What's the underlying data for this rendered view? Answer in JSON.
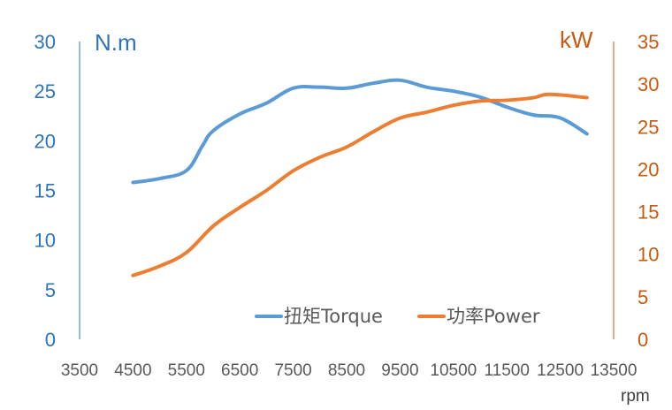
{
  "chart_data": {
    "type": "line",
    "title": "",
    "xlabel": "rpm",
    "ylabel_left": "N.m",
    "ylabel_right": "kW",
    "xlim": [
      3500,
      13500
    ],
    "x_ticks": [
      3500,
      4500,
      5500,
      6500,
      7500,
      8500,
      9500,
      10500,
      11500,
      12500,
      13500
    ],
    "ylim_left": [
      0,
      30
    ],
    "y_ticks_left": [
      0,
      5,
      10,
      15,
      20,
      25,
      30
    ],
    "ylim_right": [
      0,
      35
    ],
    "y_ticks_right": [
      0,
      5,
      10,
      15,
      20,
      25,
      30,
      35
    ],
    "grid": false,
    "legend_position": "bottom-right",
    "series": [
      {
        "name": "扭矩Torque",
        "axis": "left",
        "color": "#5B9BD5",
        "x": [
          4500,
          5000,
          5500,
          5800,
          6000,
          6500,
          7000,
          7500,
          8000,
          8500,
          9000,
          9500,
          10000,
          10500,
          11000,
          11500,
          12000,
          12500,
          13000
        ],
        "y": [
          15.8,
          16.2,
          17.0,
          19.5,
          21.0,
          22.7,
          23.8,
          25.3,
          25.4,
          25.3,
          25.8,
          26.1,
          25.4,
          25.0,
          24.4,
          23.4,
          22.6,
          22.3,
          20.7
        ]
      },
      {
        "name": "功率Power",
        "axis": "right",
        "color": "#ED7D31",
        "x": [
          4500,
          5000,
          5500,
          6000,
          6500,
          7000,
          7500,
          8000,
          8500,
          9000,
          9500,
          10000,
          10500,
          11000,
          11500,
          12000,
          12300,
          13000
        ],
        "y": [
          7.5,
          8.6,
          10.2,
          13.3,
          15.5,
          17.5,
          19.8,
          21.4,
          22.6,
          24.4,
          26.0,
          26.7,
          27.5,
          28.0,
          28.1,
          28.4,
          28.8,
          28.4
        ]
      }
    ]
  }
}
